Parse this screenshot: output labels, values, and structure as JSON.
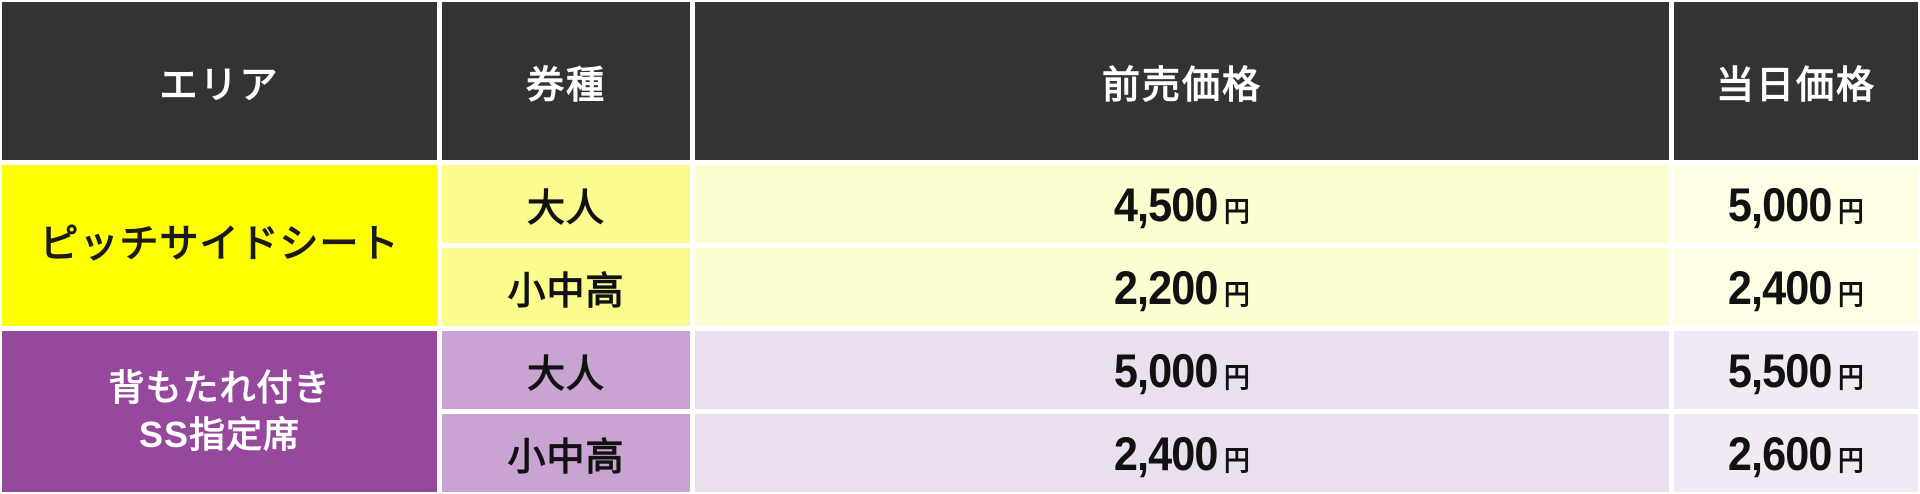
{
  "table": {
    "headers": {
      "area": "エリア",
      "ticket_type": "券種",
      "advance_price": "前売価格",
      "day_price": "当日価格"
    },
    "currency_suffix": "円",
    "colors": {
      "header_bg": "#333333",
      "header_text": "#ffffff",
      "grid_line": "#ffffff"
    },
    "groups": [
      {
        "area_lines": [
          "ピッチサイドシート"
        ],
        "colors": {
          "area_bg": "#ffff00",
          "area_text": "#1a1a1a",
          "type_bg": "#fcfc8e",
          "advance_bg": "#fdfdd2",
          "day_bg": "#fefee6"
        },
        "rows": [
          {
            "ticket_type": "大人",
            "advance_price": "4,500",
            "day_price": "5,000"
          },
          {
            "ticket_type": "小中高",
            "advance_price": "2,200",
            "day_price": "2,400"
          }
        ]
      },
      {
        "area_lines": [
          "背もたれ付き",
          "SS指定席"
        ],
        "colors": {
          "area_bg": "#96489c",
          "area_text": "#ffffff",
          "type_bg": "#c9a3d1",
          "advance_bg": "#eadfef",
          "day_bg": "#f1e9f4"
        },
        "rows": [
          {
            "ticket_type": "大人",
            "advance_price": "5,000",
            "day_price": "5,500"
          },
          {
            "ticket_type": "小中高",
            "advance_price": "2,400",
            "day_price": "2,600"
          }
        ]
      }
    ]
  }
}
